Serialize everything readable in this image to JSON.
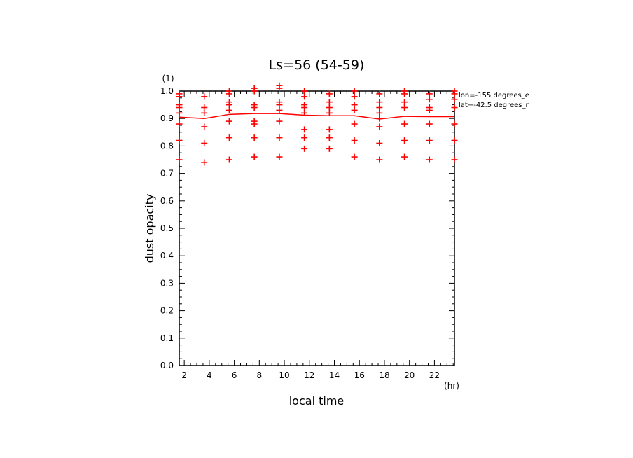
{
  "chart_data": {
    "type": "scatter",
    "title": "Ls=56 (54-59)",
    "xlabel": "local time",
    "ylabel": "dust opacity",
    "x_unit": "(hr)",
    "y_unit": "(1)",
    "xlim": [
      1.6,
      23.6
    ],
    "ylim": [
      0.0,
      1.0
    ],
    "xticks": [
      2,
      4,
      6,
      8,
      10,
      12,
      14,
      16,
      18,
      20,
      22
    ],
    "yticks": [
      0.0,
      0.1,
      0.2,
      0.3,
      0.4,
      0.5,
      0.6,
      0.7,
      0.8,
      0.9,
      1.0
    ],
    "annotations": [
      "lon=-155 degrees_e",
      "lat=-42.5 degrees_n"
    ],
    "grid": false,
    "colors": {
      "marks": "#ff0000",
      "axes": "#000000"
    },
    "points": [
      [
        1.6,
        0.99
      ],
      [
        1.6,
        0.98
      ],
      [
        1.6,
        0.95
      ],
      [
        1.6,
        0.94
      ],
      [
        1.6,
        0.92
      ],
      [
        1.6,
        0.88
      ],
      [
        1.6,
        0.82
      ],
      [
        1.6,
        0.75
      ],
      [
        3.6,
        0.98
      ],
      [
        3.6,
        0.94
      ],
      [
        3.6,
        0.92
      ],
      [
        3.6,
        0.87
      ],
      [
        3.6,
        0.81
      ],
      [
        3.6,
        0.74
      ],
      [
        5.6,
        1.0
      ],
      [
        5.6,
        0.99
      ],
      [
        5.6,
        0.96
      ],
      [
        5.6,
        0.95
      ],
      [
        5.6,
        0.93
      ],
      [
        5.6,
        0.89
      ],
      [
        5.6,
        0.83
      ],
      [
        5.6,
        0.75
      ],
      [
        7.6,
        1.01
      ],
      [
        7.6,
        1.0
      ],
      [
        7.6,
        0.95
      ],
      [
        7.6,
        0.94
      ],
      [
        7.6,
        0.89
      ],
      [
        7.6,
        0.88
      ],
      [
        7.6,
        0.83
      ],
      [
        7.6,
        0.76
      ],
      [
        9.6,
        1.02
      ],
      [
        9.6,
        1.01
      ],
      [
        9.6,
        0.96
      ],
      [
        9.6,
        0.95
      ],
      [
        9.6,
        0.93
      ],
      [
        9.6,
        0.89
      ],
      [
        9.6,
        0.83
      ],
      [
        9.6,
        0.76
      ],
      [
        11.6,
        1.0
      ],
      [
        11.6,
        0.98
      ],
      [
        11.6,
        0.95
      ],
      [
        11.6,
        0.94
      ],
      [
        11.6,
        0.92
      ],
      [
        11.6,
        0.86
      ],
      [
        11.6,
        0.83
      ],
      [
        11.6,
        0.79
      ],
      [
        13.6,
        0.99
      ],
      [
        13.6,
        0.96
      ],
      [
        13.6,
        0.94
      ],
      [
        13.6,
        0.92
      ],
      [
        13.6,
        0.86
      ],
      [
        13.6,
        0.83
      ],
      [
        13.6,
        0.79
      ],
      [
        15.6,
        1.0
      ],
      [
        15.6,
        0.98
      ],
      [
        15.6,
        0.95
      ],
      [
        15.6,
        0.93
      ],
      [
        15.6,
        0.88
      ],
      [
        15.6,
        0.82
      ],
      [
        15.6,
        0.76
      ],
      [
        17.6,
        0.99
      ],
      [
        17.6,
        0.96
      ],
      [
        17.6,
        0.94
      ],
      [
        17.6,
        0.92
      ],
      [
        17.6,
        0.9
      ],
      [
        17.6,
        0.87
      ],
      [
        17.6,
        0.81
      ],
      [
        17.6,
        0.75
      ],
      [
        19.6,
        1.0
      ],
      [
        19.6,
        0.99
      ],
      [
        19.6,
        0.96
      ],
      [
        19.6,
        0.94
      ],
      [
        19.6,
        0.88
      ],
      [
        19.6,
        0.82
      ],
      [
        19.6,
        0.76
      ],
      [
        21.6,
        0.99
      ],
      [
        21.6,
        0.97
      ],
      [
        21.6,
        0.94
      ],
      [
        21.6,
        0.93
      ],
      [
        21.6,
        0.88
      ],
      [
        21.6,
        0.82
      ],
      [
        21.6,
        0.75
      ],
      [
        23.6,
        1.0
      ],
      [
        23.6,
        0.99
      ],
      [
        23.6,
        0.97
      ],
      [
        23.6,
        0.94
      ],
      [
        23.6,
        0.88
      ],
      [
        23.6,
        0.82
      ],
      [
        23.6,
        0.75
      ]
    ],
    "mean_line": {
      "x": [
        1.6,
        3.6,
        5.6,
        7.6,
        9.6,
        11.6,
        13.6,
        15.6,
        17.6,
        19.6,
        21.6,
        23.6
      ],
      "y": [
        0.905,
        0.9,
        0.915,
        0.918,
        0.918,
        0.912,
        0.91,
        0.91,
        0.898,
        0.908,
        0.907,
        0.907
      ]
    }
  }
}
